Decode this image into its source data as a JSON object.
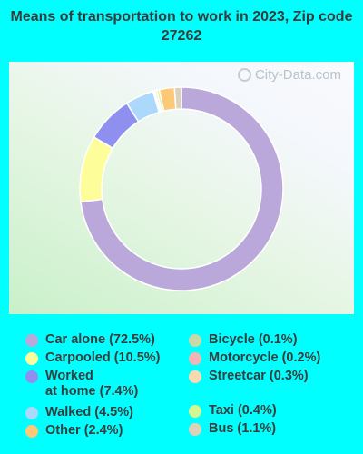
{
  "title": "Means of transportation to work in 2023, Zip code 27262",
  "watermark": "City-Data.com",
  "chart_data": {
    "type": "pie",
    "donut": true,
    "title": "Means of transportation to work in 2023, Zip code 27262",
    "legend_position": "bottom",
    "slices": [
      {
        "label": "Car alone (72.5%)",
        "value": 72.5,
        "color": "#bba8da"
      },
      {
        "label": "Carpooled (10.5%)",
        "value": 10.5,
        "color": "#fdfd99"
      },
      {
        "label": "Worked\nat home (7.4%)",
        "value": 7.4,
        "color": "#8f8ff0"
      },
      {
        "label": "Walked (4.5%)",
        "value": 4.5,
        "color": "#acd8fb"
      },
      {
        "label": "Bicycle (0.1%)",
        "value": 0.1,
        "color": "#c9d8a8"
      },
      {
        "label": "Motorcycle (0.2%)",
        "value": 0.2,
        "color": "#f2b4b4"
      },
      {
        "label": "Streetcar (0.3%)",
        "value": 0.3,
        "color": "#fbd9b0"
      },
      {
        "label": "Taxi (0.4%)",
        "value": 0.4,
        "color": "#d4f891"
      },
      {
        "label": "Other (2.4%)",
        "value": 2.4,
        "color": "#fdc877"
      },
      {
        "label": "Bus (1.1%)",
        "value": 1.1,
        "color": "#dcd2bc"
      }
    ]
  }
}
